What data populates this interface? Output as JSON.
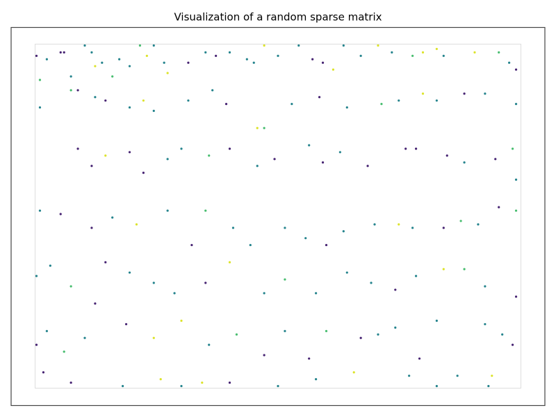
{
  "chart_data": {
    "type": "scatter",
    "title": "Visualization of a random sparse matrix",
    "colormap": "viridis",
    "xlim": [
      -0.5,
      140.5
    ],
    "ylim": [
      99.5,
      -0.5
    ],
    "clim": [
      0,
      1
    ],
    "x": [
      0,
      1,
      3,
      7,
      8,
      10,
      14,
      16,
      17,
      19,
      22,
      24,
      27,
      30,
      32,
      34,
      37,
      38,
      44,
      49,
      52,
      56,
      61,
      63,
      66,
      70,
      76,
      80,
      83,
      86,
      89,
      94,
      99,
      103,
      109,
      112,
      116,
      118,
      127,
      134,
      137,
      139,
      1,
      10,
      12,
      17,
      20,
      27,
      31,
      34,
      44,
      51,
      55,
      64,
      66,
      74,
      82,
      90,
      100,
      105,
      112,
      116,
      124,
      130,
      139,
      12,
      16,
      20,
      27,
      31,
      38,
      42,
      50,
      56,
      64,
      69,
      79,
      83,
      88,
      96,
      107,
      110,
      119,
      124,
      133,
      138,
      139,
      1,
      7,
      16,
      22,
      29,
      38,
      45,
      49,
      57,
      62,
      72,
      78,
      84,
      89,
      98,
      105,
      109,
      118,
      123,
      128,
      134,
      139,
      0,
      4,
      10,
      17,
      20,
      27,
      34,
      40,
      49,
      56,
      66,
      72,
      81,
      90,
      97,
      104,
      110,
      118,
      124,
      130,
      139,
      0,
      3,
      8,
      14,
      26,
      34,
      42,
      50,
      58,
      66,
      72,
      79,
      84,
      94,
      99,
      104,
      111,
      116,
      122,
      130,
      135,
      138,
      2,
      10,
      25,
      36,
      42,
      48,
      56,
      70,
      81,
      92,
      108,
      116,
      131,
      132
    ],
    "y": [
      3,
      10,
      4,
      2,
      2,
      9,
      0,
      2,
      6,
      5,
      9,
      4,
      6,
      0,
      3,
      0,
      5,
      8,
      5,
      2,
      3,
      2,
      4,
      5,
      0,
      3,
      0,
      4,
      5,
      7,
      0,
      3,
      0,
      2,
      3,
      2,
      1,
      3,
      2,
      2,
      5,
      7,
      18,
      13,
      13,
      15,
      16,
      18,
      16,
      19,
      16,
      13,
      17,
      24,
      24,
      17,
      15,
      18,
      17,
      16,
      14,
      16,
      14,
      14,
      17,
      30,
      35,
      32,
      31,
      37,
      33,
      30,
      32,
      30,
      35,
      33,
      29,
      34,
      31,
      35,
      30,
      30,
      32,
      34,
      33,
      30,
      39,
      48,
      49,
      53,
      50,
      52,
      48,
      58,
      48,
      53,
      58,
      53,
      56,
      58,
      54,
      52,
      52,
      53,
      53,
      51,
      52,
      47,
      48,
      67,
      64,
      70,
      75,
      63,
      66,
      69,
      72,
      69,
      63,
      72,
      68,
      72,
      66,
      69,
      71,
      67,
      65,
      65,
      70,
      73,
      87,
      83,
      89,
      85,
      81,
      85,
      80,
      87,
      84,
      90,
      83,
      91,
      83,
      85,
      84,
      82,
      91,
      80,
      96,
      81,
      84,
      87,
      95,
      98,
      99,
      97,
      99,
      98,
      98,
      99,
      97,
      95,
      96,
      99,
      99,
      96
    ],
    "values": [
      0.1,
      0.7,
      0.45,
      0.1,
      0.1,
      0.45,
      0.45,
      0.45,
      0.95,
      0.45,
      0.7,
      0.45,
      0.45,
      0.7,
      0.95,
      0.45,
      0.45,
      0.95,
      0.1,
      0.45,
      0.1,
      0.45,
      0.45,
      0.45,
      0.95,
      0.45,
      0.45,
      0.1,
      0.1,
      0.95,
      0.45,
      0.45,
      0.95,
      0.45,
      0.7,
      0.95,
      0.95,
      0.45,
      0.95,
      0.7,
      0.45,
      0.1,
      0.45,
      0.7,
      0.1,
      0.45,
      0.1,
      0.45,
      0.95,
      0.45,
      0.45,
      0.45,
      0.1,
      0.95,
      0.7,
      0.45,
      0.1,
      0.45,
      0.7,
      0.45,
      0.95,
      0.45,
      0.1,
      0.45,
      0.45,
      0.1,
      0.1,
      0.95,
      0.1,
      0.1,
      0.45,
      0.45,
      0.7,
      0.1,
      0.45,
      0.1,
      0.45,
      0.1,
      0.45,
      0.1,
      0.1,
      0.1,
      0.1,
      0.45,
      0.1,
      0.7,
      0.45,
      0.45,
      0.1,
      0.1,
      0.45,
      0.95,
      0.45,
      0.1,
      0.7,
      0.45,
      0.45,
      0.45,
      0.45,
      0.1,
      0.45,
      0.45,
      0.95,
      0.45,
      0.1,
      0.7,
      0.45,
      0.1,
      0.7,
      0.45,
      0.45,
      0.7,
      0.1,
      0.1,
      0.45,
      0.45,
      0.45,
      0.1,
      0.95,
      0.45,
      0.7,
      0.45,
      0.45,
      0.45,
      0.1,
      0.45,
      0.95,
      0.7,
      0.45,
      0.1,
      0.1,
      0.45,
      0.7,
      0.45,
      0.1,
      0.95,
      0.95,
      0.45,
      0.7,
      0.1,
      0.45,
      0.1,
      0.7,
      0.1,
      0.45,
      0.45,
      0.1,
      0.45,
      0.45,
      0.45,
      0.45,
      0.1,
      0.1,
      0.1,
      0.45,
      0.95,
      0.45,
      0.95,
      0.1,
      0.45,
      0.45,
      0.95,
      0.45,
      0.45,
      0.45,
      0.95
    ]
  }
}
